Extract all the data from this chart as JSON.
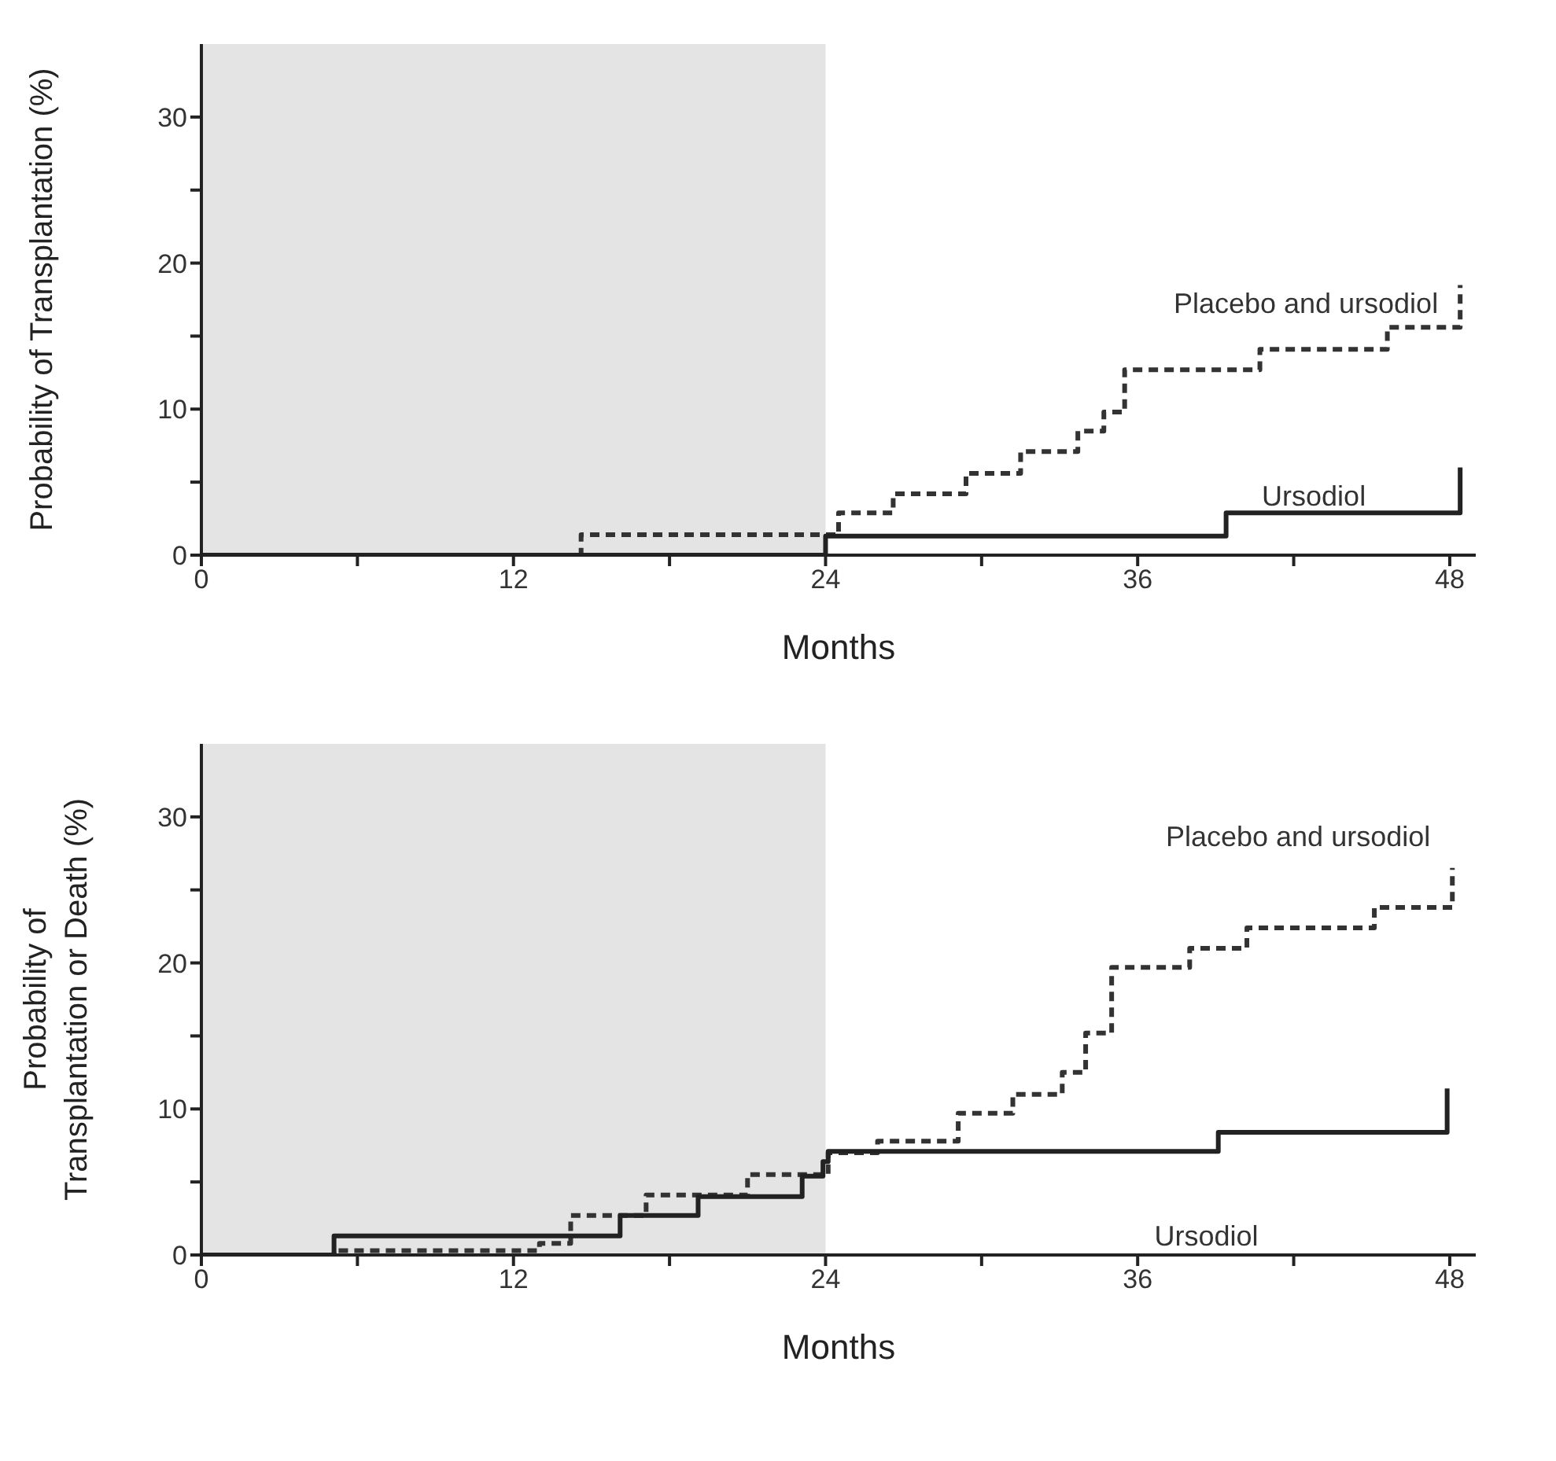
{
  "chart_data": [
    {
      "type": "step",
      "xlabel": "Months",
      "ylabel": "Probability of Transplantation (%)",
      "xlim": [
        0,
        49
      ],
      "ylim": [
        0,
        35
      ],
      "xticks": [
        0,
        {
          "value": 6,
          "label": null
        },
        12,
        {
          "value": 18,
          "label": null
        },
        24,
        {
          "value": 30,
          "label": null
        },
        36,
        {
          "value": 42,
          "label": null
        },
        48
      ],
      "yticks": [
        0,
        {
          "value": 5,
          "label": null
        },
        10,
        {
          "value": 15,
          "label": null
        },
        20,
        {
          "value": 25,
          "label": null
        },
        30
      ],
      "grid": false,
      "legend": false,
      "bands": [
        {
          "axis": "x",
          "from": 0,
          "to": 24,
          "color": "#e4e4e4"
        }
      ],
      "series": [
        {
          "name": "Placebo and ursodiol",
          "color": "#333333",
          "line_style": "dashed",
          "x": [
            0,
            14.6,
            24.5,
            26.6,
            29.4,
            31.5,
            33.7,
            34.7,
            35.5,
            40.7,
            45.6,
            48.4,
            48.4
          ],
          "values": [
            0,
            1.4,
            2.9,
            4.2,
            5.6,
            7.1,
            8.5,
            9.8,
            12.7,
            14.1,
            15.6,
            15.6,
            18.5
          ]
        },
        {
          "name": "Ursodiol",
          "color": "#222222",
          "line_style": "solid",
          "x": [
            0,
            24,
            39.4,
            48.4,
            48.4
          ],
          "values": [
            0,
            1.3,
            2.9,
            2.9,
            6.0
          ]
        }
      ]
    },
    {
      "type": "step",
      "xlabel": "Months",
      "ylabel": "Probability of Transplantation or Death (%)",
      "xlim": [
        0,
        49
      ],
      "ylim": [
        0,
        35
      ],
      "xticks": [
        0,
        {
          "value": 6,
          "label": null
        },
        12,
        {
          "value": 18,
          "label": null
        },
        24,
        {
          "value": 30,
          "label": null
        },
        36,
        {
          "value": 42,
          "label": null
        },
        48
      ],
      "yticks": [
        0,
        {
          "value": 5,
          "label": null
        },
        10,
        {
          "value": 15,
          "label": null
        },
        20,
        {
          "value": 25,
          "label": null
        },
        30
      ],
      "grid": false,
      "legend": false,
      "bands": [
        {
          "axis": "x",
          "from": 0,
          "to": 24,
          "color": "#e4e4e4"
        }
      ],
      "series": [
        {
          "name": "Placebo and ursodiol",
          "color": "#333333",
          "line_style": "dashed",
          "x": [
            0,
            5.1,
            13,
            14.2,
            17.1,
            21,
            24.1,
            26,
            29.1,
            31.2,
            33.1,
            34,
            35,
            38,
            40.2,
            45.1,
            48.1,
            48.1
          ],
          "values": [
            0,
            0.3,
            0.8,
            2.7,
            4.1,
            5.5,
            7.0,
            7.8,
            9.7,
            11.0,
            12.5,
            15.2,
            19.7,
            21.0,
            22.4,
            23.8,
            23.8,
            26.5
          ]
        },
        {
          "name": "Ursodiol",
          "color": "#222222",
          "line_style": "solid",
          "x": [
            0,
            5.1,
            16.1,
            19.1,
            23.1,
            23.9,
            24.1,
            39.1,
            47.9,
            47.9
          ],
          "values": [
            0,
            1.3,
            2.7,
            4.0,
            5.4,
            6.4,
            7.1,
            8.4,
            8.4,
            11.4
          ]
        }
      ]
    }
  ]
}
